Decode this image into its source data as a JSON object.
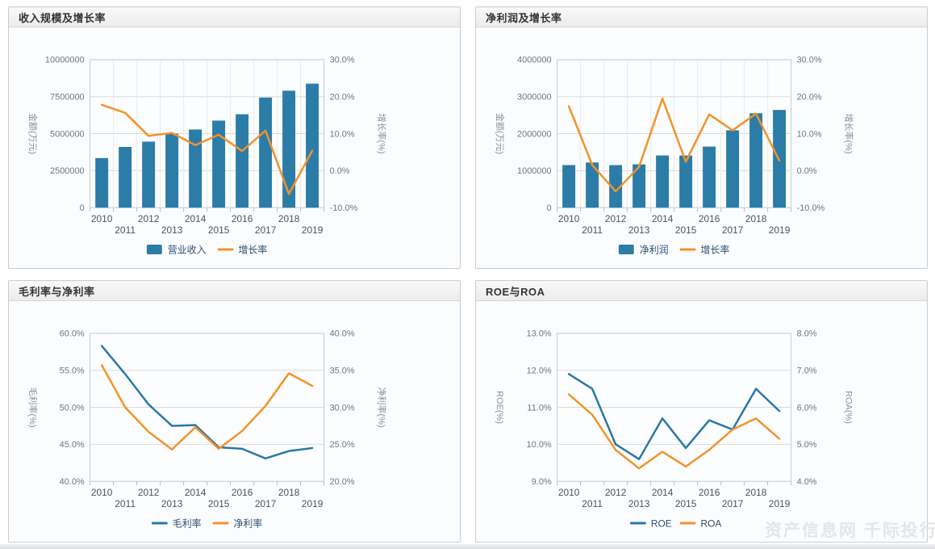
{
  "page": {
    "watermark": "资产信息网 千际投行"
  },
  "colors": {
    "bar_blue": "#2b7ca7",
    "line_blue": "#2878a6",
    "line_orange": "#f3922a",
    "gridline": "#dadada",
    "vgridline": "#e9e9e9",
    "plot_border": "#c6c9cc",
    "plot_bg": "#fcfdfe",
    "tick_text": "#6e7680",
    "year_text": "#4a5460",
    "axis_title_text": "#8a8f96",
    "legend_text": "#2e4e74"
  },
  "chart_data": [
    {
      "type": "bar+line",
      "title": "收入规模及增长率",
      "grid": true,
      "vgrid": true,
      "legend_position": "bottom",
      "categories": [
        "2010",
        "2011",
        "2012",
        "2013",
        "2014",
        "2015",
        "2016",
        "2017",
        "2018",
        "2019"
      ],
      "left_axis": {
        "label": "金额(万元)",
        "min": 0,
        "max": 10000000,
        "ticks": [
          "10000000",
          "7500000",
          "5000000",
          "2500000",
          "0"
        ]
      },
      "right_axis": {
        "label": "增长率(%)",
        "min": -10,
        "max": 30,
        "ticks": [
          "30.0%",
          "20.0%",
          "10.0%",
          "0.0%",
          "-10.0%"
        ]
      },
      "series": [
        {
          "name": "营业收入",
          "type": "bar",
          "axis": "left",
          "color": "#2b7ca7",
          "values": [
            3350000,
            4100000,
            4460000,
            5000000,
            5280000,
            5880000,
            6310000,
            7440000,
            7900000,
            8380000
          ]
        },
        {
          "name": "增长率",
          "type": "line",
          "axis": "right",
          "color": "#f3922a",
          "values": [
            17.8,
            15.6,
            9.4,
            10.2,
            6.9,
            9.7,
            5.3,
            10.8,
            -6.3,
            5.4
          ]
        }
      ]
    },
    {
      "type": "bar+line",
      "title": "净利润及增长率",
      "grid": true,
      "vgrid": true,
      "legend_position": "bottom",
      "categories": [
        "2010",
        "2011",
        "2012",
        "2013",
        "2014",
        "2015",
        "2016",
        "2017",
        "2018",
        "2019"
      ],
      "left_axis": {
        "label": "金额(万元)",
        "min": 0,
        "max": 4000000,
        "ticks": [
          "4000000",
          "3000000",
          "2000000",
          "1000000",
          "0"
        ]
      },
      "right_axis": {
        "label": "增长率(%)",
        "min": -10,
        "max": 30,
        "ticks": [
          "30.0%",
          "20.0%",
          "10.0%",
          "0.0%",
          "-10.0%"
        ]
      },
      "series": [
        {
          "name": "净利润",
          "type": "bar",
          "axis": "left",
          "color": "#2b7ca7",
          "values": [
            1150000,
            1220000,
            1150000,
            1170000,
            1410000,
            1410000,
            1650000,
            2090000,
            2550000,
            2640000
          ]
        },
        {
          "name": "增长率",
          "type": "line",
          "axis": "right",
          "color": "#f3922a",
          "values": [
            17.4,
            1.5,
            -5.6,
            1.0,
            19.5,
            2.4,
            15.2,
            10.9,
            15.4,
            2.7
          ]
        }
      ]
    },
    {
      "type": "line",
      "title": "毛利率与净利率",
      "grid": true,
      "vgrid": false,
      "legend_position": "bottom",
      "categories": [
        "2010",
        "2011",
        "2012",
        "2013",
        "2014",
        "2015",
        "2016",
        "2017",
        "2018",
        "2019"
      ],
      "left_axis": {
        "label": "毛利率(%)",
        "min": 40,
        "max": 60,
        "ticks": [
          "60.0%",
          "55.0%",
          "50.0%",
          "45.0%",
          "40.0%"
        ]
      },
      "right_axis": {
        "label": "净利率(%)",
        "min": 20,
        "max": 40,
        "ticks": [
          "40.0%",
          "35.0%",
          "30.0%",
          "25.0%",
          "20.0%"
        ]
      },
      "series": [
        {
          "name": "毛利率",
          "type": "line",
          "axis": "left",
          "color": "#2878a6",
          "values": [
            58.3,
            54.5,
            50.4,
            47.5,
            47.6,
            44.6,
            44.4,
            43.1,
            44.1,
            44.5
          ]
        },
        {
          "name": "净利率",
          "type": "line",
          "axis": "right",
          "color": "#f3922a",
          "values": [
            35.7,
            30.0,
            26.7,
            24.3,
            27.3,
            24.4,
            26.8,
            30.2,
            34.6,
            32.9
          ]
        }
      ]
    },
    {
      "type": "line",
      "title": "ROE与ROA",
      "grid": true,
      "vgrid": false,
      "legend_position": "bottom",
      "categories": [
        "2010",
        "2011",
        "2012",
        "2013",
        "2014",
        "2015",
        "2016",
        "2017",
        "2018",
        "2019"
      ],
      "left_axis": {
        "label": "ROE(%)",
        "min": 9,
        "max": 13,
        "ticks": [
          "13.0%",
          "12.0%",
          "11.0%",
          "10.0%",
          "9.0%"
        ]
      },
      "right_axis": {
        "label": "ROA(%)",
        "min": 4,
        "max": 8,
        "ticks": [
          "8.0%",
          "7.0%",
          "6.0%",
          "5.0%",
          "4.0%"
        ]
      },
      "series": [
        {
          "name": "ROE",
          "type": "line",
          "axis": "left",
          "color": "#2878a6",
          "values": [
            11.9,
            11.5,
            10.0,
            9.6,
            10.7,
            9.9,
            10.65,
            10.4,
            11.5,
            10.9
          ]
        },
        {
          "name": "ROA",
          "type": "line",
          "axis": "right",
          "color": "#f3922a",
          "values": [
            6.35,
            5.8,
            4.85,
            4.35,
            4.8,
            4.4,
            4.85,
            5.4,
            5.7,
            5.15
          ]
        }
      ]
    }
  ]
}
